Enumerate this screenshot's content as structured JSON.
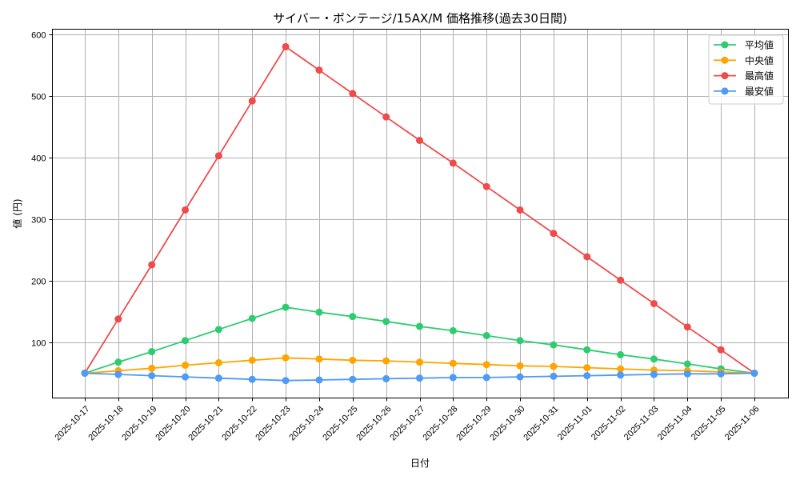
{
  "chart_data": {
    "type": "line",
    "title": "サイバー・ボンテージ/15AX/M 価格推移(過去30日間)",
    "xlabel": "日付",
    "ylabel": "値 (円)",
    "ylim": [
      10,
      610
    ],
    "yticks": [
      100,
      200,
      300,
      400,
      500,
      600
    ],
    "grid": true,
    "legend_position": "upper right",
    "categories": [
      "2025-10-17",
      "2025-10-18",
      "2025-10-19",
      "2025-10-20",
      "2025-10-21",
      "2025-10-22",
      "2025-10-23",
      "2025-10-24",
      "2025-10-25",
      "2025-10-26",
      "2025-10-27",
      "2025-10-28",
      "2025-10-29",
      "2025-10-30",
      "2025-10-31",
      "2025-11-01",
      "2025-11-02",
      "2025-11-03",
      "2025-11-04",
      "2025-11-05",
      "2025-11-06"
    ],
    "series": [
      {
        "name": "平均値",
        "color": "#2ecc71",
        "values": [
          50,
          68,
          85,
          103,
          121,
          139,
          157,
          149,
          142,
          134,
          126,
          119,
          111,
          103,
          96,
          88,
          80,
          73,
          65,
          57,
          50
        ]
      },
      {
        "name": "中央値",
        "color": "#ffa500",
        "values": [
          50,
          54,
          58,
          63,
          67,
          71,
          75,
          73,
          71,
          70,
          68,
          66,
          64,
          62,
          61,
          59,
          57,
          55,
          54,
          52,
          50
        ]
      },
      {
        "name": "最高値",
        "color": "#ef4b4b",
        "values": [
          50,
          138,
          226,
          315,
          403,
          492,
          580,
          542,
          504,
          466,
          428,
          391,
          353,
          315,
          277,
          239,
          201,
          163,
          125,
          88,
          50
        ]
      },
      {
        "name": "最安値",
        "color": "#4d9bf5",
        "values": [
          50,
          48,
          46,
          44,
          42,
          40,
          38,
          39,
          40,
          41,
          42,
          43,
          43,
          44,
          45,
          46,
          47,
          48,
          49,
          49,
          50
        ]
      }
    ]
  }
}
